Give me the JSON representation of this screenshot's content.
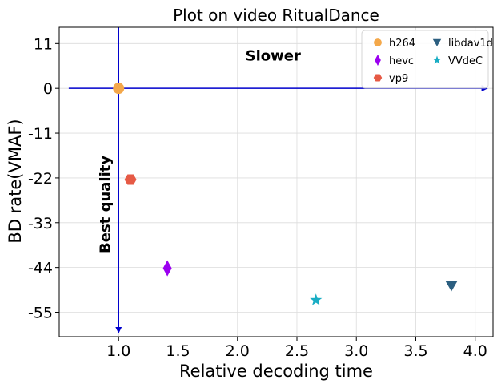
{
  "chart_data": {
    "type": "scatter",
    "title": "Plot on video RitualDance",
    "xlabel": "Relative decoding time",
    "ylabel": "BD rate(VMAF)",
    "xlim": [
      0.5,
      4.15
    ],
    "ylim": [
      -61,
      15
    ],
    "xticks": [
      1.0,
      1.5,
      2.0,
      2.5,
      3.0,
      3.5,
      4.0
    ],
    "xtick_labels": [
      "1.0",
      "1.5",
      "2.0",
      "2.5",
      "3.0",
      "3.5",
      "4.0"
    ],
    "yticks": [
      11,
      0,
      -11,
      -22,
      -33,
      -44,
      -55
    ],
    "ytick_labels": [
      "11",
      "0",
      "-11",
      "-22",
      "-33",
      "-44",
      "-55"
    ],
    "grid": true,
    "legend_position": "top-right",
    "series": [
      {
        "name": "h264",
        "marker": "circle",
        "color": "#f4a84a",
        "x": 1.0,
        "y": 0.0
      },
      {
        "name": "hevc",
        "marker": "thin-diamond",
        "color": "#9b00f0",
        "x": 1.41,
        "y": -44.2
      },
      {
        "name": "vp9",
        "marker": "hexagon",
        "color": "#e65a45",
        "x": 1.1,
        "y": -22.4
      },
      {
        "name": "libdav1d",
        "marker": "triangle-down",
        "color": "#2c5f80",
        "x": 3.8,
        "y": -48.5
      },
      {
        "name": "VVdeC",
        "marker": "star",
        "color": "#19adc4",
        "x": 2.66,
        "y": -52.0
      }
    ],
    "annotations": [
      {
        "text": "Slower",
        "x": 2.3,
        "y": 8.0,
        "orientation": "horizontal"
      },
      {
        "text": "Best quality",
        "x": 0.88,
        "y": -28.5,
        "orientation": "vertical"
      }
    ],
    "reference_axes": {
      "color": "#0000cd",
      "x_origin": 1.0,
      "y_origin": 0.0,
      "x_arrow_end": 4.1,
      "y_arrow_end": -60,
      "y_top": 15,
      "x_left": 0.58
    }
  }
}
